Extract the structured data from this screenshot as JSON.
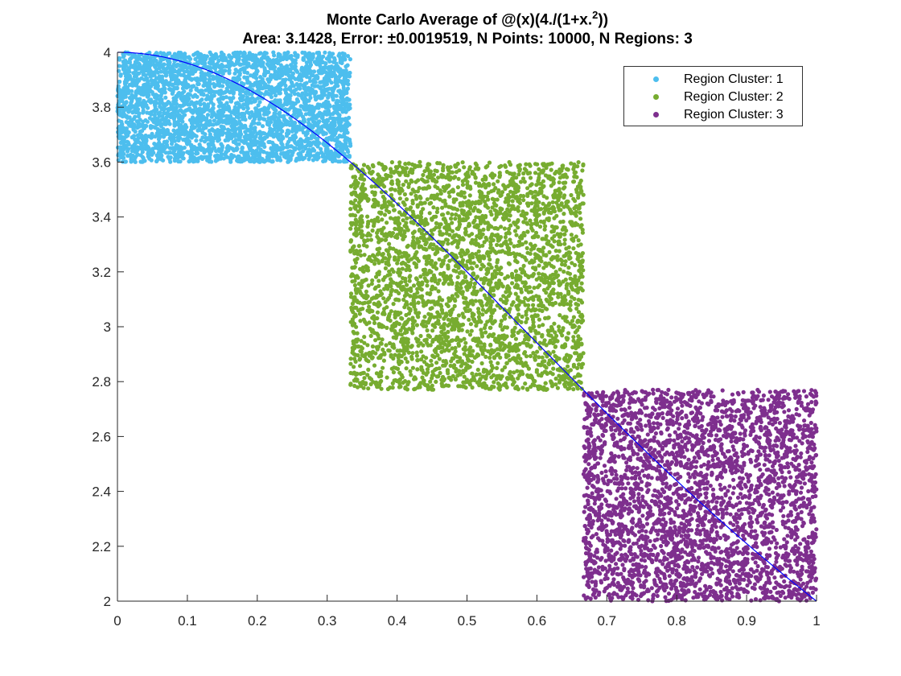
{
  "chart_data": {
    "type": "scatter",
    "title_line1": "Monte Carlo Average of @(x)(4./(1+x.",
    "title_exp": "2",
    "title_line1_end": "))",
    "title_line2": "Area: 3.1428, Error: ±0.0019519, N Points: 10000, N Regions: 3",
    "xlim": [
      0,
      1
    ],
    "ylim": [
      2,
      4
    ],
    "xticks": [
      "0",
      "0.1",
      "0.2",
      "0.3",
      "0.4",
      "0.5",
      "0.6",
      "0.7",
      "0.8",
      "0.9",
      "1"
    ],
    "yticks": [
      "2",
      "2.2",
      "2.4",
      "2.6",
      "2.8",
      "3",
      "3.2",
      "3.4",
      "3.6",
      "3.8",
      "4"
    ],
    "grid": false,
    "legend_position": "top-right",
    "function": "4/(1+x^2)",
    "curve_color": "#0000ff",
    "series": [
      {
        "name": "Region Cluster: 1",
        "color": "#4dbeee",
        "x_range": [
          0,
          0.3333
        ],
        "y_range": [
          3.6,
          4.0
        ],
        "n_points": 3333
      },
      {
        "name": "Region Cluster: 2",
        "color": "#77ac30",
        "x_range": [
          0.3333,
          0.6667
        ],
        "y_range": [
          2.77,
          3.6
        ],
        "n_points": 3333
      },
      {
        "name": "Region Cluster: 3",
        "color": "#7e2f8e",
        "x_range": [
          0.6667,
          1.0
        ],
        "y_range": [
          2.0,
          2.77
        ],
        "n_points": 3334
      }
    ]
  }
}
